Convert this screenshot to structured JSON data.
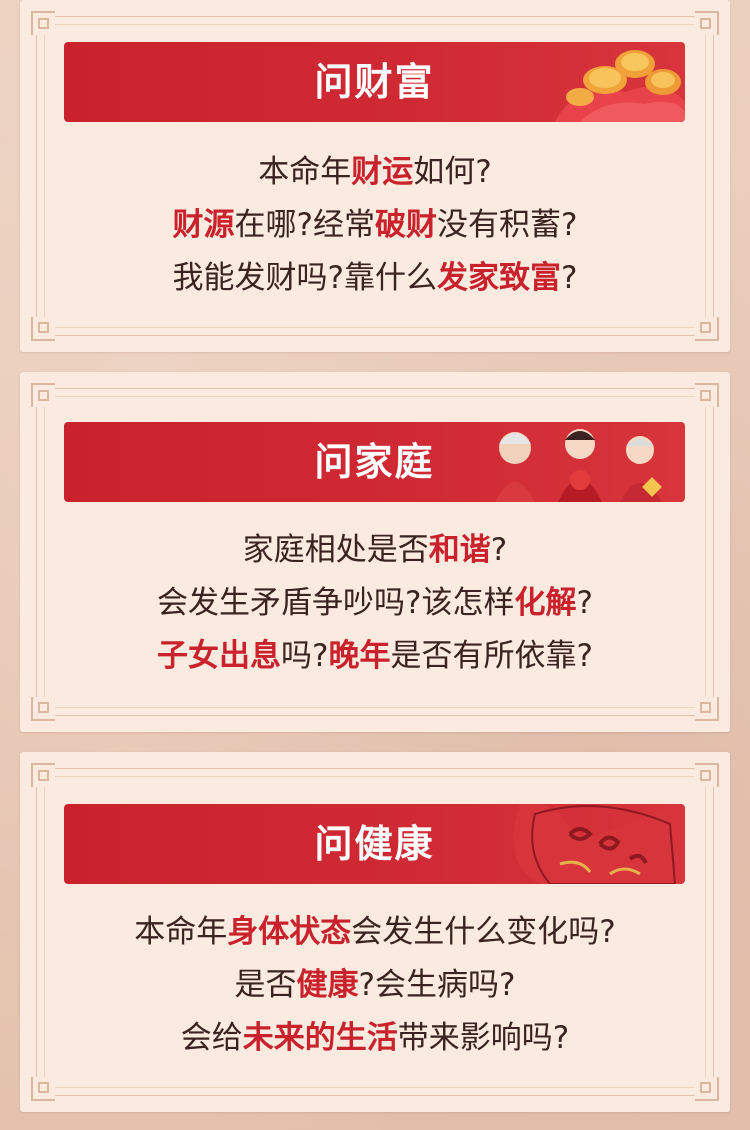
{
  "sections": [
    {
      "title": "问财富",
      "decoration": "coins-and-red-envelope",
      "lines": [
        [
          {
            "t": "本命年",
            "h": false
          },
          {
            "t": "财运",
            "h": true
          },
          {
            "t": "如何?",
            "h": false
          }
        ],
        [
          {
            "t": "财源",
            "h": true
          },
          {
            "t": "在哪?经常",
            "h": false
          },
          {
            "t": "破财",
            "h": true
          },
          {
            "t": "没有积蓄?",
            "h": false
          }
        ],
        [
          {
            "t": "我能发财吗?靠什么",
            "h": false
          },
          {
            "t": "发家致富",
            "h": true
          },
          {
            "t": "?",
            "h": false
          }
        ]
      ]
    },
    {
      "title": "问家庭",
      "decoration": "family-illustration",
      "lines": [
        [
          {
            "t": "家庭相处是否",
            "h": false
          },
          {
            "t": "和谐",
            "h": true
          },
          {
            "t": "?",
            "h": false
          }
        ],
        [
          {
            "t": "会发生矛盾争吵吗?该怎样",
            "h": false
          },
          {
            "t": "化解",
            "h": true
          },
          {
            "t": "?",
            "h": false
          }
        ],
        [
          {
            "t": "子女出息",
            "h": true
          },
          {
            "t": "吗?",
            "h": false
          },
          {
            "t": "晚年",
            "h": true
          },
          {
            "t": "是否有所依靠?",
            "h": false
          }
        ]
      ]
    },
    {
      "title": "问健康",
      "decoration": "longevity-pouch",
      "lines": [
        [
          {
            "t": "本命年",
            "h": false
          },
          {
            "t": "身体状态",
            "h": true
          },
          {
            "t": "会发生什么变化吗?",
            "h": false
          }
        ],
        [
          {
            "t": "是否",
            "h": false
          },
          {
            "t": "健康",
            "h": true
          },
          {
            "t": "?会生病吗?",
            "h": false
          }
        ],
        [
          {
            "t": "会给",
            "h": false
          },
          {
            "t": "未来的生活",
            "h": true
          },
          {
            "t": "带来影响吗?",
            "h": false
          }
        ]
      ]
    }
  ],
  "colors": {
    "accent": "#c9222d",
    "text": "#3a2320",
    "card": "#fbeadf",
    "page": "#e9cbb8"
  }
}
